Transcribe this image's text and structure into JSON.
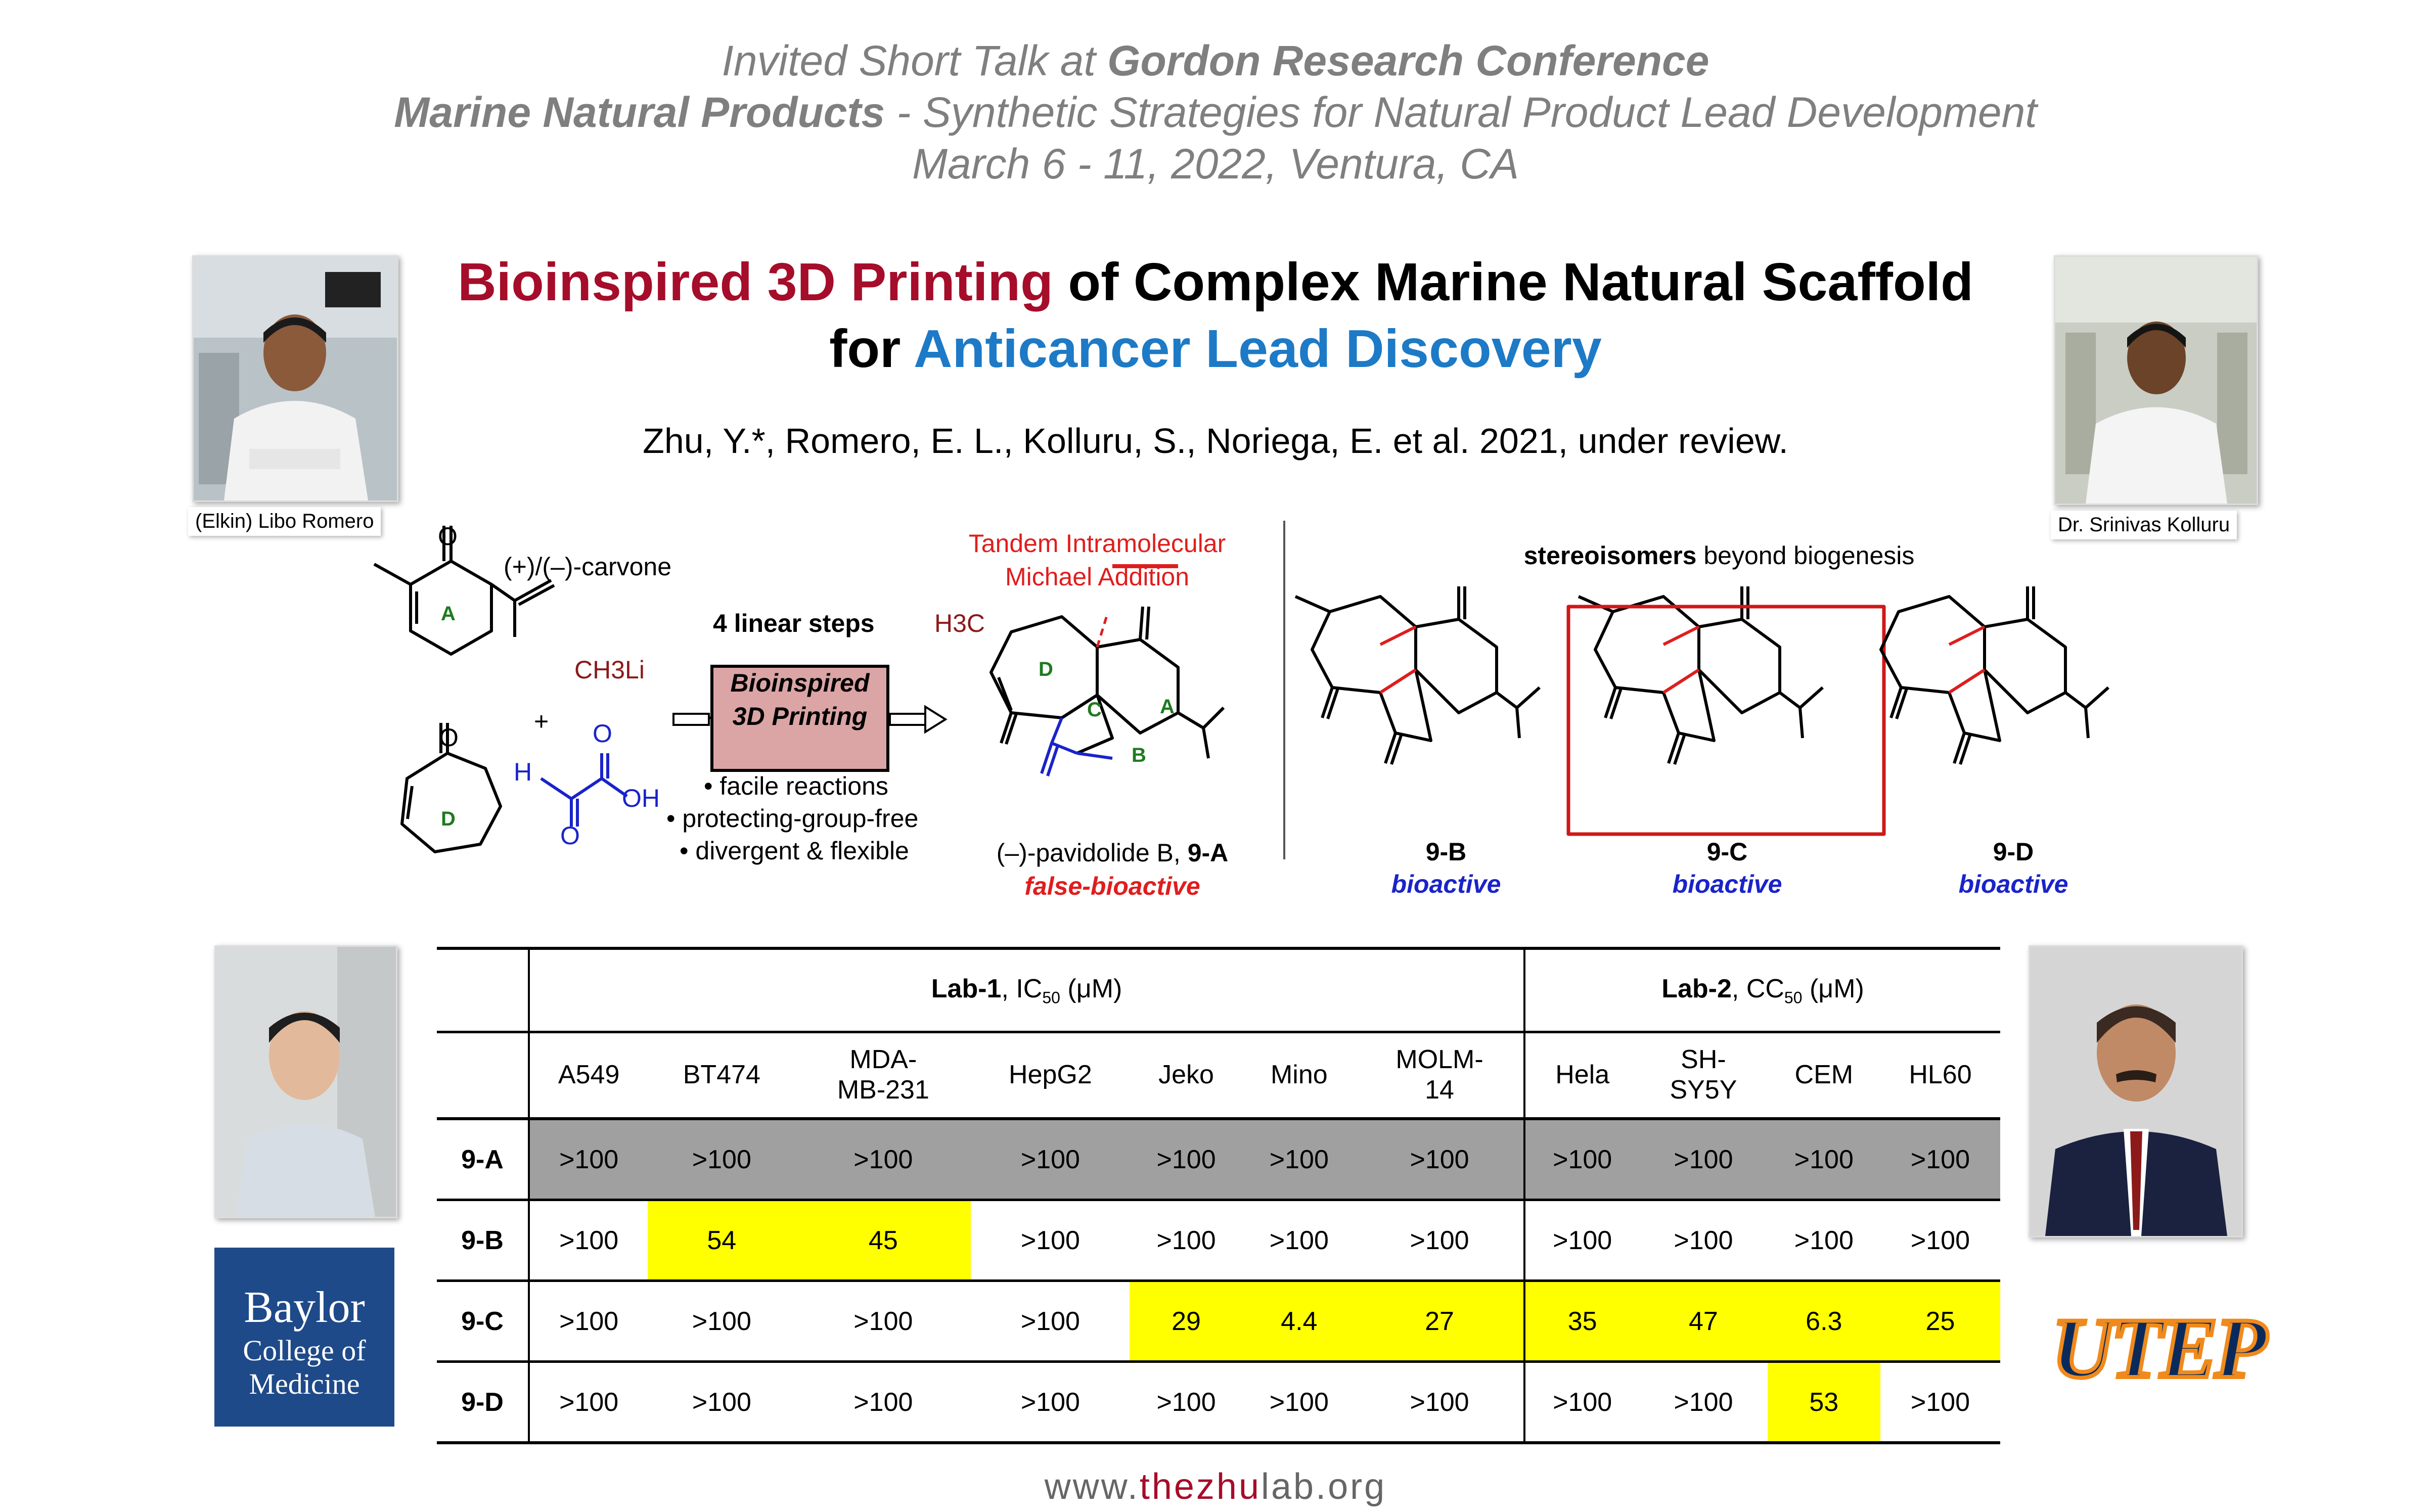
{
  "header": {
    "line1_prefix": "Invited Short Talk at ",
    "line1_bold": "Gordon Research Conference",
    "line2_bold": "Marine Natural Products",
    "line2_rest": " - Synthetic Strategies for Natural Product Lead Development",
    "line3": "March 6 - 11, 2022, Ventura, CA"
  },
  "title": {
    "part1": "Bioinspired 3D Printing",
    "part2": " of Complex Marine Natural Scaffold",
    "part3": "for ",
    "part4": "Anticancer Lead Discovery"
  },
  "authors": "Zhu, Y.*, Romero, E. L., Kolluru, S., Noriega, E. et al. 2021, under review.",
  "people": {
    "left_caption": "(Elkin) Libo Romero",
    "right_caption": "Dr. Srinivas Kolluru"
  },
  "scheme": {
    "carvone": "(+)/(–)-carvone",
    "ch3li": "CH3Li",
    "plus": "+",
    "steps": "4 linear steps",
    "box_line1": "Bioinspired",
    "box_line2": "3D Printing",
    "bullets": [
      "• facile reactions",
      "• protecting-group-free",
      "• divergent & flexible"
    ],
    "tandem_line1": "Tandem Intramolecular",
    "tandem_line2": "Michael Addition",
    "h3c": "H3C",
    "pavidolide": "(–)-pavidolide B, ",
    "pavidolide_id": "9-A",
    "false_bioactive": "false-bioactive",
    "stereo_bold": "stereoisomers",
    "stereo_rest": " beyond biogenesis",
    "isomers": [
      {
        "id": "9-B",
        "label": "bioactive"
      },
      {
        "id": "9-C",
        "label": "bioactive"
      },
      {
        "id": "9-D",
        "label": "bioactive"
      }
    ],
    "ring_labels": {
      "A": "A",
      "B": "B",
      "C": "C",
      "D": "D"
    }
  },
  "table": {
    "lab1": {
      "name": "Lab-1",
      "measure": ", IC",
      "sub": "50",
      "unit": " (μM)"
    },
    "lab2": {
      "name": "Lab-2",
      "measure": ", CC",
      "sub": "50",
      "unit": " (μM)"
    },
    "columns": [
      [
        "A549"
      ],
      [
        "BT474"
      ],
      [
        "MDA-",
        "MB-231"
      ],
      [
        "HepG2"
      ],
      [
        "Jeko"
      ],
      [
        "Mino"
      ],
      [
        "MOLM-",
        "14"
      ],
      [
        "Hela"
      ],
      [
        "SH-",
        "SY5Y"
      ],
      [
        "CEM"
      ],
      [
        "HL60"
      ]
    ],
    "rows": [
      {
        "id": "9-A",
        "values": [
          ">100",
          ">100",
          ">100",
          ">100",
          ">100",
          ">100",
          ">100",
          ">100",
          ">100",
          ">100",
          ">100"
        ]
      },
      {
        "id": "9-B",
        "values": [
          ">100",
          "54",
          "45",
          ">100",
          ">100",
          ">100",
          ">100",
          ">100",
          ">100",
          ">100",
          ">100"
        ]
      },
      {
        "id": "9-C",
        "values": [
          ">100",
          ">100",
          ">100",
          ">100",
          "29",
          "4.4",
          "27",
          "35",
          "47",
          "6.3",
          "25"
        ]
      },
      {
        "id": "9-D",
        "values": [
          ">100",
          ">100",
          ">100",
          ">100",
          ">100",
          ">100",
          ">100",
          ">100",
          ">100",
          "53",
          ">100"
        ]
      }
    ],
    "highlight_color": "#ffff00",
    "grey_row_color": "#a0a0a0"
  },
  "logos": {
    "baylor_line1": "Baylor",
    "baylor_line2": "College of",
    "baylor_line3": "Medicine",
    "utep": "UTEP"
  },
  "footer": {
    "prefix": "www.",
    "highlight": "thezhu",
    "mid": "lab",
    "suffix": ".org"
  }
}
